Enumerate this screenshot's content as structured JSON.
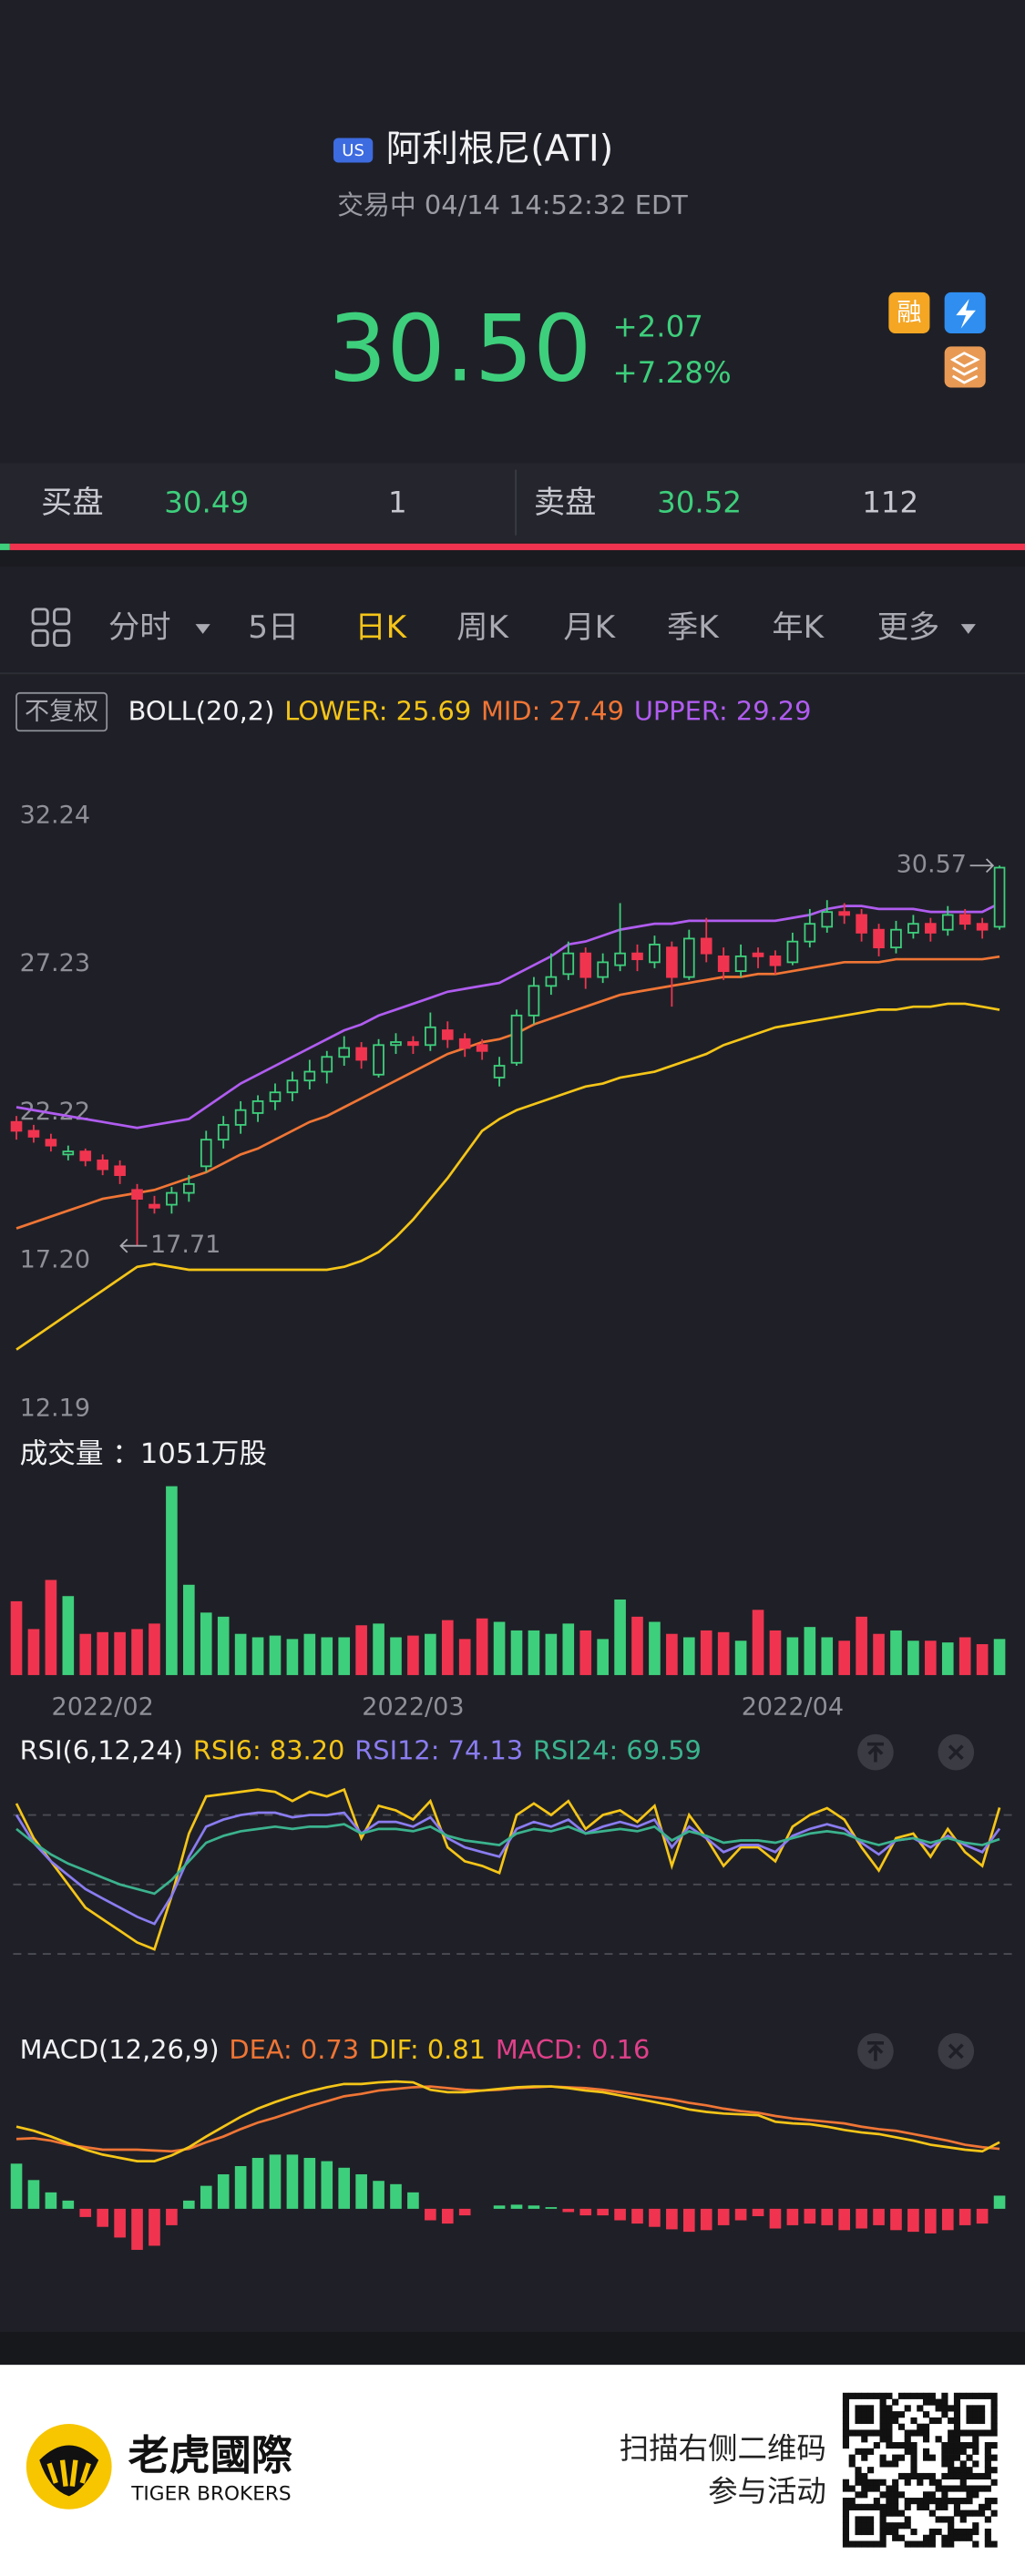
{
  "header": {
    "market": "US",
    "title": "阿利根尼(ATI)",
    "status": "交易中 04/14 14:52:32 EDT"
  },
  "quote": {
    "price": "30.50",
    "change": "+2.07",
    "change_pct": "+7.28%",
    "badge": "融"
  },
  "order_book": {
    "bid_label": "买盘",
    "bid_price": "30.49",
    "bid_size": "1",
    "ask_label": "卖盘",
    "ask_price": "30.52",
    "ask_size": "112"
  },
  "tabs": {
    "items": [
      "分时",
      "5日",
      "日K",
      "周K",
      "月K",
      "季K",
      "年K",
      "更多"
    ],
    "active": 2
  },
  "price_chart": {
    "type": "candlestick",
    "adjust": "不复权",
    "title": "BOLL(20,2)",
    "ylim": [
      12.19,
      32.24
    ],
    "yticks": [
      12.19,
      {
        "value": 17.2,
        "label": "17.20"
      },
      22.22,
      27.23,
      32.24
    ],
    "up_color": "#3ecf7c",
    "down_color": "#f0344f",
    "open": [
      21.9,
      21.6,
      21.3,
      20.8,
      20.9,
      20.6,
      20.4,
      19.6,
      19.1,
      19.1,
      19.5,
      20.4,
      21.3,
      21.8,
      22.2,
      22.6,
      22.9,
      23.3,
      23.6,
      24.1,
      24.4,
      23.5,
      24.5,
      24.6,
      24.5,
      25.0,
      24.7,
      24.5,
      23.4,
      23.9,
      25.5,
      26.5,
      26.9,
      27.6,
      26.8,
      27.2,
      27.6,
      27.3,
      27.8,
      26.8,
      28.1,
      27.5,
      27.0,
      27.6,
      27.5,
      27.3,
      28.0,
      28.5,
      29.0,
      28.9,
      28.4,
      27.8,
      28.3,
      28.6,
      28.4,
      28.9,
      28.6,
      28.5
    ],
    "high": [
      22.1,
      21.8,
      21.5,
      21.1,
      21.0,
      20.8,
      20.6,
      19.8,
      19.4,
      19.7,
      20.1,
      21.6,
      22.1,
      22.6,
      22.8,
      23.2,
      23.6,
      24.0,
      24.3,
      24.8,
      24.6,
      24.7,
      24.9,
      24.8,
      25.6,
      25.3,
      24.9,
      24.7,
      24.1,
      25.7,
      26.8,
      27.6,
      28.0,
      27.8,
      27.6,
      29.3,
      27.9,
      28.2,
      28.0,
      28.4,
      28.8,
      27.8,
      27.9,
      27.8,
      27.7,
      28.3,
      29.1,
      29.4,
      29.3,
      29.1,
      28.6,
      28.7,
      28.9,
      28.8,
      29.2,
      29.1,
      28.8,
      30.57
    ],
    "low": [
      21.3,
      21.2,
      20.9,
      20.6,
      20.4,
      20.1,
      19.8,
      17.71,
      18.8,
      18.8,
      19.2,
      20.2,
      21.0,
      21.5,
      21.9,
      22.3,
      22.6,
      23.0,
      23.2,
      23.8,
      23.7,
      23.4,
      24.2,
      24.2,
      24.3,
      24.4,
      24.1,
      24.0,
      23.1,
      23.8,
      25.2,
      26.2,
      26.7,
      26.4,
      26.6,
      27.0,
      27.0,
      27.1,
      25.8,
      26.7,
      27.3,
      26.7,
      26.8,
      27.1,
      26.9,
      27.2,
      27.8,
      28.3,
      28.6,
      28.0,
      27.5,
      27.6,
      28.1,
      28.0,
      28.2,
      28.4,
      28.1,
      28.4
    ],
    "close": [
      21.6,
      21.4,
      21.1,
      20.9,
      20.6,
      20.3,
      20.1,
      19.3,
      19.0,
      19.5,
      19.8,
      21.3,
      21.8,
      22.3,
      22.6,
      22.9,
      23.3,
      23.6,
      24.1,
      24.4,
      24.0,
      24.5,
      24.6,
      24.5,
      25.1,
      24.7,
      24.4,
      24.3,
      23.8,
      25.5,
      26.5,
      26.8,
      27.6,
      26.8,
      27.3,
      27.6,
      27.4,
      27.9,
      26.8,
      28.1,
      27.6,
      27.0,
      27.5,
      27.5,
      27.2,
      28.0,
      28.6,
      29.0,
      28.9,
      28.3,
      27.8,
      28.4,
      28.6,
      28.3,
      28.9,
      28.6,
      28.4,
      30.5
    ],
    "bands": [
      {
        "name": "LOWER: 25.69",
        "color": "#f5c518",
        "values": [
          14.2,
          14.6,
          15.0,
          15.4,
          15.8,
          16.2,
          16.6,
          17.0,
          17.1,
          17.0,
          16.9,
          16.9,
          16.9,
          16.9,
          16.9,
          16.9,
          16.9,
          16.9,
          16.9,
          17.0,
          17.2,
          17.5,
          18.0,
          18.6,
          19.3,
          20.0,
          20.8,
          21.6,
          22.0,
          22.3,
          22.5,
          22.7,
          22.9,
          23.1,
          23.2,
          23.4,
          23.5,
          23.6,
          23.8,
          24.0,
          24.2,
          24.5,
          24.7,
          24.9,
          25.1,
          25.2,
          25.3,
          25.4,
          25.5,
          25.6,
          25.7,
          25.7,
          25.8,
          25.8,
          25.9,
          25.9,
          25.8,
          25.69
        ]
      },
      {
        "name": "MID: 27.49",
        "color": "#f07535",
        "values": [
          18.3,
          18.5,
          18.7,
          18.9,
          19.1,
          19.3,
          19.4,
          19.5,
          19.6,
          19.8,
          20.0,
          20.2,
          20.5,
          20.8,
          21.0,
          21.3,
          21.6,
          21.9,
          22.1,
          22.4,
          22.7,
          23.0,
          23.3,
          23.6,
          23.9,
          24.2,
          24.4,
          24.6,
          24.7,
          24.9,
          25.2,
          25.4,
          25.6,
          25.8,
          26.0,
          26.2,
          26.3,
          26.4,
          26.5,
          26.6,
          26.7,
          26.8,
          26.8,
          26.9,
          26.9,
          27.0,
          27.1,
          27.2,
          27.3,
          27.3,
          27.3,
          27.4,
          27.4,
          27.4,
          27.4,
          27.4,
          27.4,
          27.49
        ]
      },
      {
        "name": "UPPER: 29.29",
        "color": "#b05cf0",
        "values": [
          22.4,
          22.3,
          22.2,
          22.1,
          22.0,
          21.9,
          21.8,
          21.7,
          21.8,
          21.9,
          22.0,
          22.4,
          22.8,
          23.2,
          23.5,
          23.8,
          24.1,
          24.4,
          24.7,
          25.0,
          25.2,
          25.5,
          25.7,
          25.9,
          26.1,
          26.3,
          26.4,
          26.5,
          26.6,
          26.9,
          27.2,
          27.5,
          27.9,
          28.0,
          28.2,
          28.4,
          28.5,
          28.6,
          28.6,
          28.7,
          28.7,
          28.7,
          28.7,
          28.7,
          28.7,
          28.8,
          28.9,
          29.1,
          29.2,
          29.2,
          29.1,
          29.1,
          29.1,
          29.0,
          29.0,
          29.0,
          29.0,
          29.29
        ]
      }
    ],
    "high_mark": 30.57,
    "low_mark": 17.71
  },
  "volume_chart": {
    "type": "bar",
    "title": "成交量 ：1051万股",
    "ylim": [
      0,
      5500
    ],
    "values": [
      2150,
      1340,
      2770,
      2300,
      1200,
      1250,
      1250,
      1340,
      1500,
      5500,
      2630,
      1820,
      1700,
      1200,
      1100,
      1150,
      1050,
      1200,
      1100,
      1100,
      1450,
      1500,
      1100,
      1150,
      1200,
      1600,
      1050,
      1650,
      1550,
      1300,
      1300,
      1200,
      1500,
      1300,
      1050,
      2200,
      1700,
      1550,
      1200,
      1100,
      1300,
      1250,
      1000,
      1900,
      1300,
      1100,
      1400,
      1100,
      1000,
      1700,
      1200,
      1300,
      1000,
      1000,
      950,
      1100,
      900,
      1051
    ]
  },
  "x_axis": {
    "ticks": [
      {
        "value": 5,
        "label": "2022/02"
      },
      {
        "value": 23,
        "label": "2022/03"
      },
      {
        "value": 45,
        "label": "2022/04"
      }
    ]
  },
  "rsi_chart": {
    "type": "line",
    "title": "RSI(6,12,24)",
    "ylim": [
      0,
      100
    ],
    "guides": [
      80,
      50,
      20
    ],
    "series": [
      {
        "name": "RSI6: 83.20",
        "color": "#f5c518",
        "values": [
          85,
          70,
          60,
          50,
          40,
          35,
          30,
          25,
          22,
          45,
          72,
          88,
          89,
          90,
          91,
          90,
          86,
          90,
          88,
          91,
          70,
          84,
          82,
          78,
          86,
          66,
          60,
          58,
          55,
          80,
          85,
          80,
          86,
          74,
          80,
          82,
          77,
          84,
          58,
          80,
          70,
          58,
          66,
          66,
          60,
          75,
          80,
          83,
          78,
          66,
          56,
          70,
          72,
          62,
          74,
          64,
          58,
          83.2
        ]
      },
      {
        "name": "RSI12: 74.13",
        "color": "#8a7cf0",
        "values": [
          80,
          68,
          60,
          54,
          48,
          44,
          40,
          36,
          33,
          45,
          62,
          75,
          78,
          80,
          81,
          81,
          79,
          80,
          80,
          81,
          72,
          77,
          77,
          75,
          79,
          70,
          66,
          64,
          62,
          74,
          77,
          75,
          78,
          72,
          75,
          77,
          75,
          78,
          66,
          75,
          70,
          64,
          67,
          67,
          64,
          71,
          74,
          76,
          74,
          68,
          63,
          69,
          70,
          66,
          71,
          67,
          64,
          74.13
        ]
      },
      {
        "name": "RSI24: 69.59",
        "color": "#3bb38e",
        "values": [
          74,
          68,
          63,
          59,
          56,
          53,
          50,
          48,
          46,
          52,
          60,
          68,
          71,
          73,
          74,
          75,
          74,
          75,
          75,
          76,
          72,
          74,
          74,
          73,
          75,
          71,
          69,
          68,
          67,
          72,
          74,
          73,
          75,
          72,
          73,
          74,
          73,
          75,
          69,
          73,
          71,
          68,
          69,
          69,
          68,
          70,
          72,
          73,
          72,
          69,
          67,
          69,
          70,
          68,
          70,
          68,
          67,
          69.59
        ]
      }
    ]
  },
  "macd_chart": {
    "type": "macd",
    "title": "MACD(12,26,9)",
    "ylim": [
      -0.8,
      1.8
    ],
    "series": [
      {
        "name": "DEA: 0.73",
        "color": "#f07535",
        "values": [
          0.85,
          0.86,
          0.83,
          0.78,
          0.75,
          0.72,
          0.72,
          0.72,
          0.71,
          0.7,
          0.73,
          0.81,
          0.88,
          0.97,
          1.05,
          1.11,
          1.18,
          1.25,
          1.31,
          1.37,
          1.4,
          1.44,
          1.46,
          1.48,
          1.49,
          1.47,
          1.45,
          1.44,
          1.45,
          1.47,
          1.48,
          1.49,
          1.48,
          1.47,
          1.45,
          1.42,
          1.39,
          1.36,
          1.33,
          1.29,
          1.26,
          1.22,
          1.19,
          1.17,
          1.13,
          1.1,
          1.08,
          1.06,
          1.04,
          1.0,
          0.97,
          0.95,
          0.91,
          0.87,
          0.83,
          0.78,
          0.75,
          0.73
        ]
      },
      {
        "name": "DIF: 0.81",
        "color": "#f5c518",
        "values": [
          1.0,
          0.95,
          0.88,
          0.8,
          0.72,
          0.66,
          0.62,
          0.58,
          0.58,
          0.65,
          0.75,
          0.88,
          1.0,
          1.12,
          1.22,
          1.3,
          1.37,
          1.43,
          1.48,
          1.52,
          1.52,
          1.54,
          1.55,
          1.54,
          1.45,
          1.42,
          1.42,
          1.44,
          1.46,
          1.48,
          1.49,
          1.49,
          1.47,
          1.44,
          1.42,
          1.38,
          1.34,
          1.3,
          1.26,
          1.21,
          1.18,
          1.16,
          1.15,
          1.14,
          1.06,
          1.04,
          1.03,
          1.0,
          0.96,
          0.93,
          0.91,
          0.87,
          0.83,
          0.78,
          0.75,
          0.72,
          0.7,
          0.81
        ]
      }
    ],
    "histogram": {
      "name": "MACD: 0.16",
      "color": "#e0408a",
      "up_color": "#3ecf7c",
      "down_color": "#f0344f",
      "values": [
        0.55,
        0.35,
        0.2,
        0.1,
        -0.1,
        -0.22,
        -0.35,
        -0.5,
        -0.45,
        -0.2,
        0.1,
        0.28,
        0.42,
        0.52,
        0.62,
        0.66,
        0.66,
        0.62,
        0.58,
        0.5,
        0.42,
        0.34,
        0.3,
        0.2,
        -0.14,
        -0.18,
        -0.08,
        0,
        0.04,
        0.05,
        0.04,
        0.02,
        -0.04,
        -0.08,
        -0.08,
        -0.14,
        -0.18,
        -0.22,
        -0.25,
        -0.28,
        -0.26,
        -0.2,
        -0.14,
        -0.09,
        -0.24,
        -0.2,
        -0.18,
        -0.2,
        -0.26,
        -0.24,
        -0.2,
        -0.26,
        -0.28,
        -0.3,
        -0.26,
        -0.2,
        -0.18,
        0.16
      ]
    }
  },
  "footer": {
    "brand": "老虎國際",
    "brand_en": "TIGER BROKERS",
    "cta": [
      "扫描右侧二维码",
      "参与活动"
    ]
  }
}
